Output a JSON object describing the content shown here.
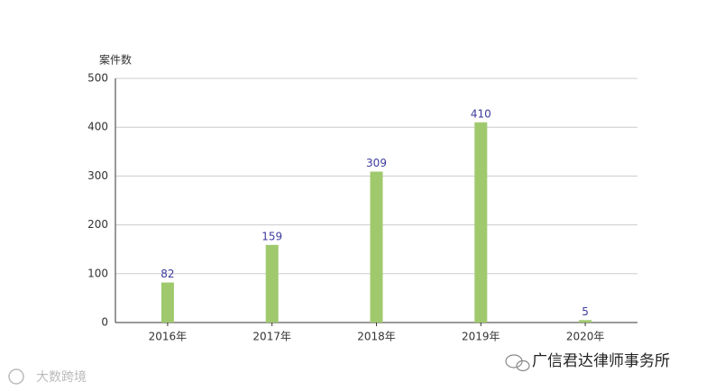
{
  "chart_data": {
    "type": "bar",
    "y_label": "案件数",
    "categories": [
      "2016年",
      "2017年",
      "2018年",
      "2019年",
      "2020年"
    ],
    "values": [
      82,
      159,
      309,
      410,
      5
    ],
    "color": "#a0c96e",
    "ylim": [
      0,
      500
    ],
    "yticks": [
      0,
      100,
      200,
      300,
      400,
      500
    ],
    "grid": true
  },
  "watermark": "广信君达律师事务所",
  "source_mark": "大数跨境"
}
